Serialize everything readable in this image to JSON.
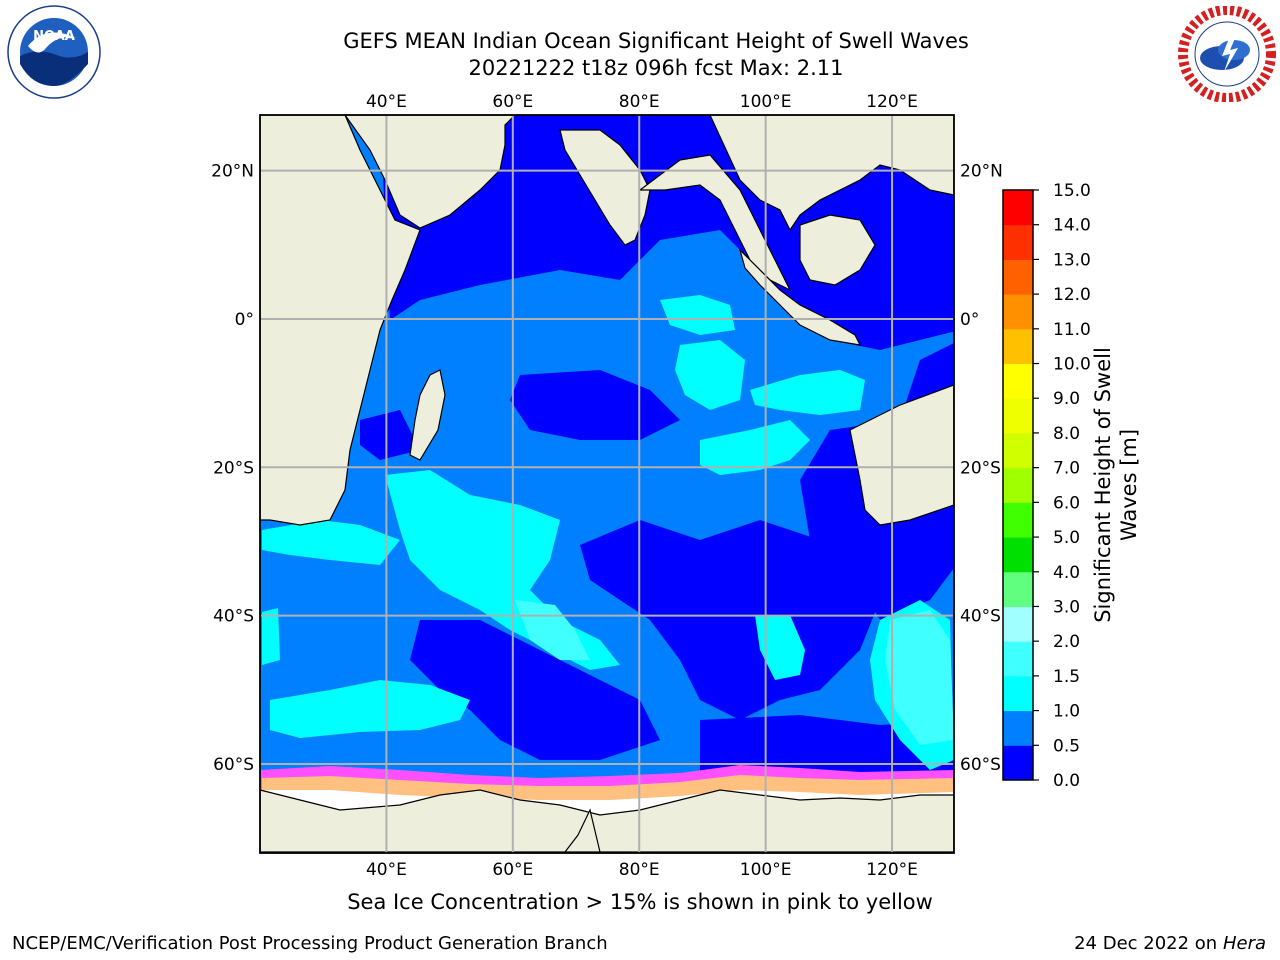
{
  "title": {
    "line1": "GEFS MEAN Indian Ocean Significant Height of Swell Waves",
    "line2": "20221222 t18z 096h fcst   Max: 2.11"
  },
  "logos": {
    "left": {
      "icon": "noaa-logo",
      "ring_text": "NATIONAL OCEANIC AND ATMOSPHERIC ADMINISTRATION",
      "bottom_text": "U.S. DEPARTMENT OF COMMERCE",
      "center": "NOAA"
    },
    "right": {
      "icon": "nws-logo",
      "ring_text": "NATIONAL WEATHER SERVICE"
    }
  },
  "map": {
    "top_lon_labels": [
      "40°E",
      "60°E",
      "80°E",
      "100°E",
      "120°E"
    ],
    "bottom_lon_labels": [
      "40°E",
      "60°E",
      "80°E",
      "100°E",
      "120°E"
    ],
    "lat_labels_left": [
      "20°N",
      "0°",
      "20°S",
      "40°S",
      "60°S"
    ],
    "lat_labels_right": [
      "20°N",
      "0°",
      "20°S",
      "40°S",
      "60°S"
    ],
    "lon_values": [
      40,
      60,
      80,
      100,
      120
    ],
    "lat_values": [
      20,
      0,
      -20,
      -40,
      -60
    ],
    "extent": {
      "lon": [
        20.0,
        129.8
      ],
      "lat": [
        -72.0,
        27.5
      ]
    },
    "colors": {
      "land": "#eeeedd",
      "ocean_low": "#0000ff",
      "grid": "#b0b0b0"
    }
  },
  "colorbar": {
    "title_line1": "Significant Height of Swell",
    "title_line2": "Waves [m]",
    "labels": [
      "15.0",
      "14.0",
      "13.0",
      "12.0",
      "11.0",
      "10.0",
      "9.0",
      "8.0",
      "7.0",
      "6.0",
      "5.0",
      "4.0",
      "3.0",
      "2.0",
      "1.5",
      "1.0",
      "0.5",
      "0.0"
    ],
    "bins": [
      {
        "lo": 0.0,
        "hi": 0.5,
        "color": "#0000ff"
      },
      {
        "lo": 0.5,
        "hi": 1.0,
        "color": "#0080ff"
      },
      {
        "lo": 1.0,
        "hi": 1.5,
        "color": "#00ffff"
      },
      {
        "lo": 1.5,
        "hi": 2.0,
        "color": "#40ffff"
      },
      {
        "lo": 2.0,
        "hi": 3.0,
        "color": "#a0ffff"
      },
      {
        "lo": 3.0,
        "hi": 4.0,
        "color": "#60ff80"
      },
      {
        "lo": 4.0,
        "hi": 5.0,
        "color": "#00e000"
      },
      {
        "lo": 5.0,
        "hi": 6.0,
        "color": "#40ff00"
      },
      {
        "lo": 6.0,
        "hi": 7.0,
        "color": "#a0ff00"
      },
      {
        "lo": 7.0,
        "hi": 8.0,
        "color": "#d0ff00"
      },
      {
        "lo": 8.0,
        "hi": 9.0,
        "color": "#f0ff00"
      },
      {
        "lo": 9.0,
        "hi": 10.0,
        "color": "#ffff00"
      },
      {
        "lo": 10.0,
        "hi": 11.0,
        "color": "#ffc000"
      },
      {
        "lo": 11.0,
        "hi": 12.0,
        "color": "#ff9000"
      },
      {
        "lo": 12.0,
        "hi": 13.0,
        "color": "#ff6000"
      },
      {
        "lo": 13.0,
        "hi": 14.0,
        "color": "#ff3000"
      },
      {
        "lo": 14.0,
        "hi": 15.0,
        "color": "#ff0000"
      }
    ]
  },
  "caption": "Sea Ice Concentration > 15% is shown in pink to yellow",
  "footer": {
    "left": "NCEP/EMC/Verification Post Processing Product Generation Branch",
    "right_date": "24 Dec 2022 on",
    "right_system": "Hera"
  }
}
